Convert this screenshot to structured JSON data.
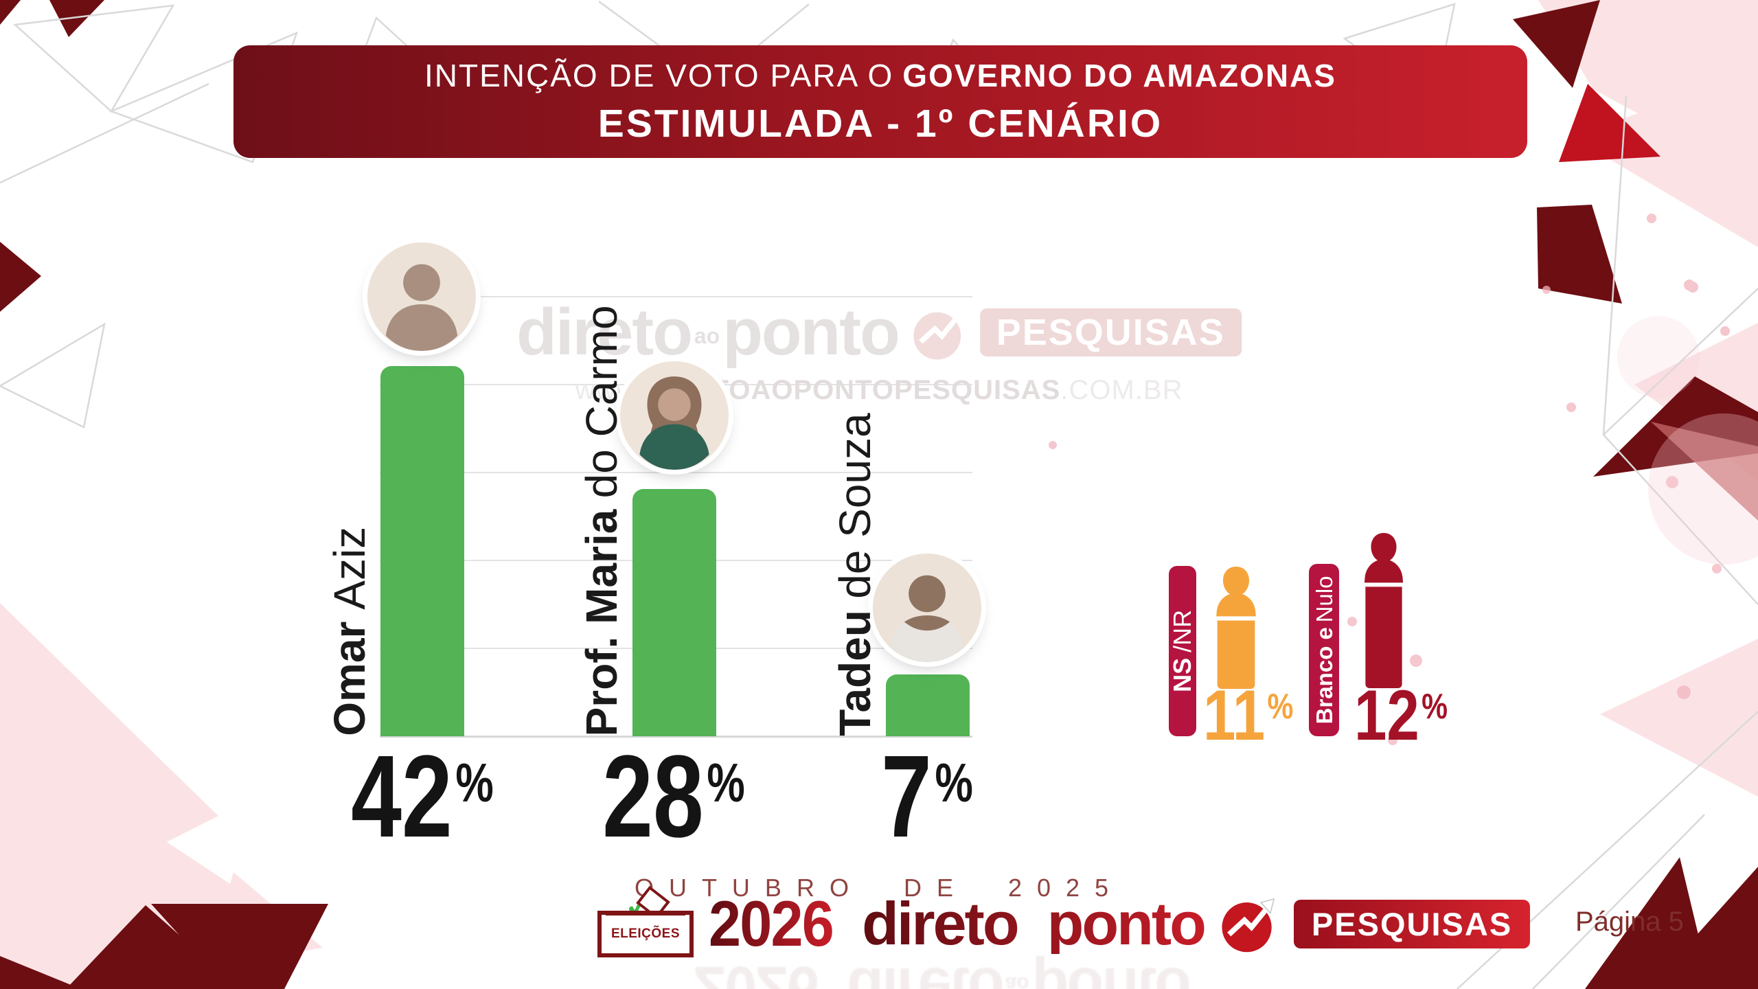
{
  "slide": {
    "title_line1_regular": "INTENÇÃO DE VOTO PARA O",
    "title_line1_bold": "GOVERNO DO AMAZONAS",
    "title_line2": "ESTIMULADA - 1º CENÁRIO",
    "date_label": "OUTUBRO DE 2025",
    "page_label": "Página 5"
  },
  "chart_data": {
    "type": "bar",
    "title": "Intenção de voto para o Governo do Amazonas — Estimulada, 1º cenário",
    "unit": "%",
    "categories": [
      "Omar Aziz",
      "Prof. Maria do Carmo",
      "Tadeu de Souza"
    ],
    "values": [
      42,
      28,
      7
    ],
    "ylim": [
      0,
      50
    ],
    "gridline_step": 10,
    "grid": "horizontal",
    "bar_color": "#53b355",
    "candidates": [
      {
        "name_bold": "Omar",
        "name_regular": "Aziz",
        "value": 42
      },
      {
        "name_bold": "Prof. Maria",
        "name_regular": "do Carmo",
        "value": 28
      },
      {
        "name_bold": "Tadeu",
        "name_regular": "de Souza",
        "value": 7
      }
    ],
    "other_responses": [
      {
        "label_bold": "NS",
        "label_regular": "/NR",
        "value": 11,
        "color": "#f5a43c"
      },
      {
        "label_bold": "Branco e",
        "label_regular": "Nulo",
        "value": 12,
        "color": "#a41228"
      }
    ]
  },
  "watermark": {
    "direto": "direto",
    "ao": "ao",
    "ponto": "ponto",
    "pesquisas": "PESQUISAS",
    "url_www": "www.",
    "url_main": "DIRETOAOPONTOPESQUISAS",
    "url_tld": ".COM.BR"
  },
  "footer": {
    "logo": {
      "eleicoes": "ELEIÇÕES",
      "year": "2026",
      "direto": "direto",
      "ao": "ao",
      "ponto": "ponto",
      "pesquisas": "PESQUISAS"
    }
  },
  "colors": {
    "banner_start": "#6e0f18",
    "banner_end": "#c7202c",
    "bar_green": "#53b355",
    "label_crimson": "#b51340",
    "ns_orange": "#f5a43c",
    "nulo_dark_red": "#a41228",
    "decor_maroon": "#6d0e12"
  }
}
